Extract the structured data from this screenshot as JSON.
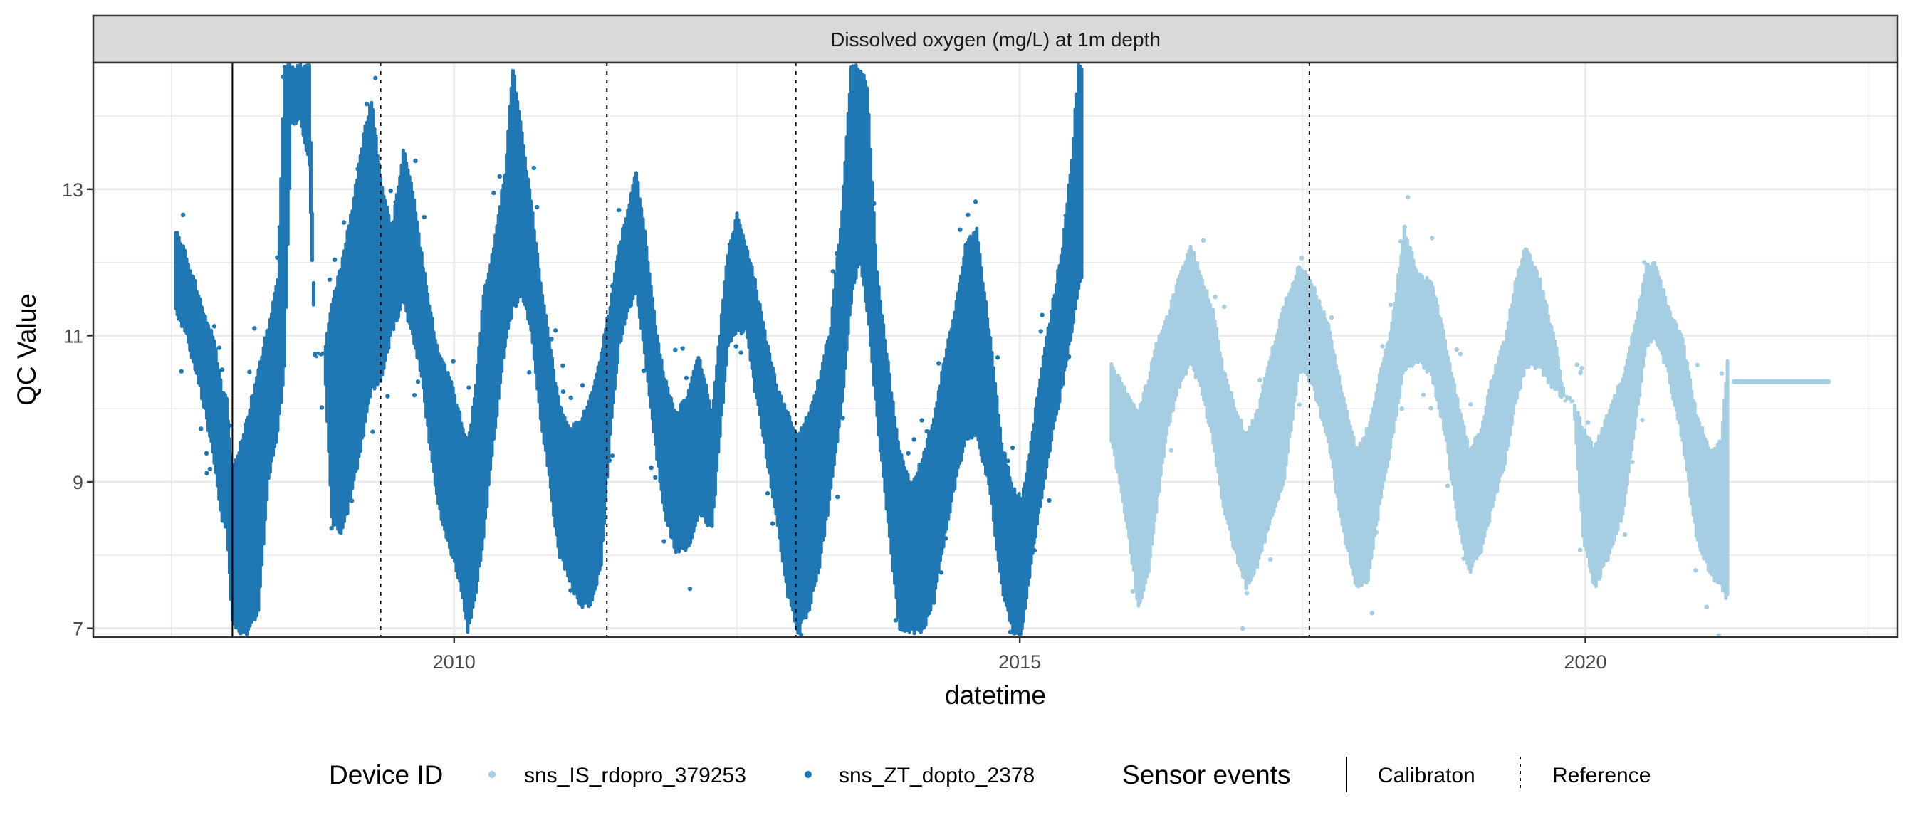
{
  "chart_data": {
    "type": "scatter",
    "strip_title": "Dissolved oxygen (mg/L) at 1m depth",
    "xlabel": "datetime",
    "ylabel": "QC Value",
    "xlim": [
      2006.81,
      2022.76
    ],
    "ylim": [
      6.88,
      14.73
    ],
    "x_ticks": [
      2010,
      2015,
      2020
    ],
    "x_tick_labels": [
      "2010",
      "2015",
      "2020"
    ],
    "x_minor_ticks": [
      2007.5,
      2012.5,
      2017.5,
      2022.5
    ],
    "y_ticks": [
      7,
      9,
      11,
      13
    ],
    "y_tick_labels": [
      "7",
      "9",
      "11",
      "13"
    ],
    "y_minor_ticks": [
      8,
      10,
      12,
      14
    ],
    "grid": true,
    "legend_position": "bottom",
    "legend": {
      "device_title": "Device ID",
      "devices": [
        {
          "name": "sns_IS_rdopro_379253",
          "color": "#A6CEE3"
        },
        {
          "name": "sns_ZT_dopto_2378",
          "color": "#1F78B4"
        }
      ],
      "events_title": "Sensor events",
      "events": [
        {
          "name": "Calibraton",
          "linetype": "solid"
        },
        {
          "name": "Reference",
          "linetype": "dashed"
        }
      ]
    },
    "sensor_events": [
      {
        "type": "Calibraton",
        "x": 2008.04
      },
      {
        "type": "Reference",
        "x": 2009.35
      },
      {
        "type": "Reference",
        "x": 2011.35
      },
      {
        "type": "Reference",
        "x": 2013.02
      },
      {
        "type": "Reference",
        "x": 2017.56
      }
    ],
    "series": [
      {
        "name": "sns_ZT_dopto_2378",
        "color": "#1F78B4",
        "envelope_columns": [
          "x",
          "low",
          "high"
        ],
        "envelope": [
          [
            2007.54,
            11.3,
            12.5
          ],
          [
            2007.62,
            11.0,
            12.2
          ],
          [
            2007.71,
            10.5,
            11.8
          ],
          [
            2007.8,
            9.9,
            11.3
          ],
          [
            2007.88,
            9.2,
            11.0
          ],
          [
            2007.95,
            8.4,
            10.3
          ],
          [
            2007.99,
            8.3,
            10.2
          ],
          [
            2008.04,
            7.0,
            9.2
          ],
          [
            2008.1,
            6.88,
            9.5
          ],
          [
            2008.18,
            6.88,
            10.0
          ],
          [
            2008.27,
            7.2,
            10.6
          ],
          [
            2008.36,
            9.0,
            11.2
          ],
          [
            2008.44,
            9.6,
            11.8
          ],
          [
            2008.5,
            10.5,
            14.73
          ],
          [
            2008.56,
            13.8,
            14.73
          ],
          [
            2008.64,
            13.9,
            14.73
          ],
          [
            2008.72,
            13.3,
            14.73
          ],
          [
            2008.77,
            10.7,
            10.8
          ],
          [
            2008.85,
            10.7,
            10.8
          ],
          [
            2008.92,
            8.4,
            11.5
          ],
          [
            2009.0,
            8.2,
            12.0
          ],
          [
            2009.1,
            8.8,
            12.8
          ],
          [
            2009.2,
            9.6,
            13.8
          ],
          [
            2009.27,
            10.2,
            14.3
          ],
          [
            2009.35,
            10.3,
            13.2
          ],
          [
            2009.45,
            11.0,
            12.5
          ],
          [
            2009.55,
            11.4,
            13.6
          ],
          [
            2009.62,
            11.0,
            13.2
          ],
          [
            2009.7,
            10.5,
            12.3
          ],
          [
            2009.78,
            9.5,
            11.5
          ],
          [
            2009.86,
            8.6,
            10.8
          ],
          [
            2009.96,
            8.0,
            10.5
          ],
          [
            2010.05,
            7.6,
            10.0
          ],
          [
            2010.12,
            6.88,
            9.6
          ],
          [
            2010.18,
            7.3,
            10.2
          ],
          [
            2010.26,
            8.2,
            11.6
          ],
          [
            2010.35,
            9.5,
            12.3
          ],
          [
            2010.45,
            10.8,
            13.3
          ],
          [
            2010.52,
            11.3,
            14.73
          ],
          [
            2010.6,
            11.5,
            13.8
          ],
          [
            2010.68,
            11.0,
            12.9
          ],
          [
            2010.75,
            10.0,
            12.0
          ],
          [
            2010.84,
            9.0,
            11.0
          ],
          [
            2010.92,
            8.0,
            10.2
          ],
          [
            2011.02,
            7.6,
            9.8
          ],
          [
            2011.12,
            7.2,
            9.9
          ],
          [
            2011.22,
            7.3,
            10.3
          ],
          [
            2011.3,
            7.8,
            10.8
          ],
          [
            2011.38,
            9.6,
            11.5
          ],
          [
            2011.46,
            10.8,
            12.3
          ],
          [
            2011.55,
            11.3,
            12.9
          ],
          [
            2011.61,
            11.5,
            13.3
          ],
          [
            2011.7,
            10.5,
            12.3
          ],
          [
            2011.78,
            9.4,
            11.2
          ],
          [
            2011.86,
            8.5,
            10.5
          ],
          [
            2011.96,
            8.0,
            10.0
          ],
          [
            2012.06,
            8.0,
            10.2
          ],
          [
            2012.16,
            8.5,
            10.8
          ],
          [
            2012.28,
            8.3,
            10.0
          ],
          [
            2012.42,
            10.8,
            12.2
          ],
          [
            2012.5,
            11.0,
            12.7
          ],
          [
            2012.58,
            11.0,
            12.3
          ],
          [
            2012.66,
            10.2,
            11.8
          ],
          [
            2012.76,
            9.3,
            11.0
          ],
          [
            2012.86,
            8.3,
            10.3
          ],
          [
            2012.95,
            7.4,
            10.0
          ],
          [
            2013.04,
            6.88,
            9.7
          ],
          [
            2013.14,
            7.2,
            10.0
          ],
          [
            2013.23,
            7.8,
            10.5
          ],
          [
            2013.33,
            8.8,
            11.2
          ],
          [
            2013.43,
            10.0,
            12.8
          ],
          [
            2013.51,
            11.4,
            14.73
          ],
          [
            2013.58,
            12.0,
            14.73
          ],
          [
            2013.65,
            11.3,
            14.5
          ],
          [
            2013.74,
            9.8,
            11.9
          ],
          [
            2013.85,
            8.2,
            10.5
          ],
          [
            2013.94,
            6.88,
            9.5
          ],
          [
            2014.04,
            6.88,
            9.0
          ],
          [
            2014.14,
            6.88,
            9.4
          ],
          [
            2014.24,
            7.3,
            9.9
          ],
          [
            2014.34,
            8.2,
            10.8
          ],
          [
            2014.44,
            9.0,
            11.5
          ],
          [
            2014.52,
            9.5,
            12.3
          ],
          [
            2014.62,
            9.6,
            12.5
          ],
          [
            2014.74,
            8.8,
            11.0
          ],
          [
            2014.84,
            7.5,
            9.6
          ],
          [
            2014.94,
            6.88,
            9.0
          ],
          [
            2015.02,
            6.88,
            8.8
          ],
          [
            2015.1,
            7.8,
            9.6
          ],
          [
            2015.18,
            8.6,
            10.5
          ],
          [
            2015.28,
            9.5,
            11.4
          ],
          [
            2015.38,
            10.3,
            12.3
          ],
          [
            2015.46,
            11.0,
            13.5
          ],
          [
            2015.52,
            11.6,
            14.73
          ],
          [
            2015.56,
            11.8,
            14.73
          ]
        ]
      },
      {
        "name": "sns_IS_rdopro_379253",
        "color": "#A6CEE3",
        "envelope_columns": [
          "x",
          "low",
          "high"
        ],
        "envelope": [
          [
            2015.81,
            9.5,
            10.7
          ],
          [
            2015.9,
            8.8,
            10.4
          ],
          [
            2015.98,
            8.0,
            10.2
          ],
          [
            2016.05,
            7.2,
            10.0
          ],
          [
            2016.14,
            7.7,
            10.5
          ],
          [
            2016.22,
            8.7,
            11.0
          ],
          [
            2016.3,
            9.6,
            11.3
          ],
          [
            2016.4,
            10.2,
            11.8
          ],
          [
            2016.51,
            10.6,
            12.3
          ],
          [
            2016.6,
            10.2,
            11.9
          ],
          [
            2016.71,
            9.5,
            11.4
          ],
          [
            2016.8,
            8.6,
            10.6
          ],
          [
            2016.9,
            8.0,
            10.1
          ],
          [
            2017.0,
            7.5,
            9.7
          ],
          [
            2017.1,
            7.8,
            10.0
          ],
          [
            2017.22,
            8.4,
            10.8
          ],
          [
            2017.34,
            9.0,
            11.5
          ],
          [
            2017.47,
            10.5,
            12.0
          ],
          [
            2017.58,
            10.3,
            11.8
          ],
          [
            2017.73,
            9.5,
            11.2
          ],
          [
            2017.85,
            8.3,
            10.3
          ],
          [
            2017.98,
            7.5,
            9.5
          ],
          [
            2018.08,
            7.6,
            9.8
          ],
          [
            2018.18,
            8.6,
            10.5
          ],
          [
            2018.29,
            9.5,
            11.2
          ],
          [
            2018.4,
            10.5,
            12.5
          ],
          [
            2018.52,
            10.6,
            11.9
          ],
          [
            2018.64,
            10.4,
            11.8
          ],
          [
            2018.76,
            9.6,
            11.0
          ],
          [
            2018.87,
            8.4,
            10.2
          ],
          [
            2018.97,
            7.7,
            9.5
          ],
          [
            2019.08,
            8.0,
            9.8
          ],
          [
            2019.18,
            8.6,
            10.5
          ],
          [
            2019.29,
            9.2,
            11.0
          ],
          [
            2019.38,
            10.0,
            11.8
          ],
          [
            2019.47,
            10.5,
            12.3
          ],
          [
            2019.6,
            10.5,
            11.8
          ],
          [
            2019.73,
            10.2,
            11.0
          ],
          [
            2019.82,
            10.1,
            10.2
          ],
          [
            2019.89,
            10.1,
            10.15
          ],
          [
            2019.98,
            8.2,
            9.8
          ],
          [
            2020.08,
            7.5,
            9.5
          ],
          [
            2020.2,
            7.9,
            10.0
          ],
          [
            2020.33,
            8.5,
            10.5
          ],
          [
            2020.45,
            9.8,
            11.3
          ],
          [
            2020.54,
            10.8,
            12.0
          ],
          [
            2020.61,
            10.9,
            12.1
          ],
          [
            2020.72,
            10.5,
            11.5
          ],
          [
            2020.86,
            9.5,
            11.0
          ],
          [
            2020.98,
            8.2,
            10.0
          ],
          [
            2021.1,
            7.7,
            9.5
          ],
          [
            2021.2,
            7.5,
            9.6
          ],
          [
            2021.27,
            7.3,
            11.0
          ]
        ],
        "flat_segment": {
          "x_start": 2021.29,
          "x_end": 2022.17,
          "value": 10.37
        }
      }
    ]
  }
}
